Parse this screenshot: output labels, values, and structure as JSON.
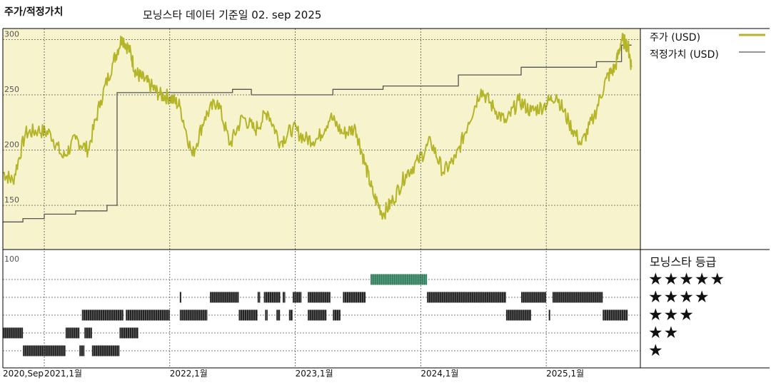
{
  "header": {
    "left_title": "주가/적정가치",
    "center_title": "모닝스타 데이터 기준일 02. sep 2025"
  },
  "legend": {
    "price_label": "주가 (USD)",
    "fair_label": "적정가치 (USD)",
    "price_color": "#b5b52a",
    "fair_color": "#555555"
  },
  "rating_panel": {
    "title": "모닝스타 등급",
    "stars": [
      "★★★★★",
      "★★★★",
      "★★★",
      "★★",
      "★"
    ]
  },
  "colors": {
    "plot_bg": "#f7f3cc",
    "rating_bar": "#222222",
    "five_star_bar": "#2e7d5b"
  },
  "chart_data": [
    {
      "type": "line",
      "title": "",
      "ylim": [
        110,
        310
      ],
      "yticks": [
        150,
        200,
        250,
        300
      ],
      "xlim": [
        2020.67,
        2025.75
      ],
      "xticks": [
        {
          "x": 2020.67,
          "label": "2020,Sep"
        },
        {
          "x": 2021.0,
          "label": "2021,1월"
        },
        {
          "x": 2022.0,
          "label": "2022,1월"
        },
        {
          "x": 2023.0,
          "label": "2023,1월"
        },
        {
          "x": 2024.0,
          "label": "2024,1월"
        },
        {
          "x": 2025.0,
          "label": "2025,1월"
        }
      ],
      "grid": true,
      "legend_position": "right",
      "series": [
        {
          "name": "주가 (USD)",
          "x": [
            2020.67,
            2020.75,
            2020.85,
            2020.95,
            2021.05,
            2021.15,
            2021.25,
            2021.35,
            2021.45,
            2021.55,
            2021.62,
            2021.68,
            2021.73,
            2021.78,
            2021.85,
            2021.92,
            2022.0,
            2022.08,
            2022.18,
            2022.28,
            2022.38,
            2022.48,
            2022.58,
            2022.68,
            2022.78,
            2022.88,
            2022.98,
            2023.08,
            2023.18,
            2023.28,
            2023.38,
            2023.48,
            2023.55,
            2023.62,
            2023.7,
            2023.78,
            2023.88,
            2023.98,
            2024.08,
            2024.18,
            2024.28,
            2024.38,
            2024.48,
            2024.58,
            2024.68,
            2024.78,
            2024.88,
            2024.98,
            2025.08,
            2025.18,
            2025.28,
            2025.38,
            2025.48,
            2025.55,
            2025.6,
            2025.65,
            2025.68
          ],
          "y": [
            180,
            172,
            215,
            218,
            215,
            193,
            210,
            200,
            245,
            280,
            302,
            290,
            270,
            265,
            258,
            250,
            248,
            240,
            195,
            230,
            245,
            205,
            230,
            218,
            235,
            207,
            220,
            210,
            210,
            230,
            215,
            220,
            190,
            160,
            142,
            155,
            178,
            190,
            208,
            180,
            193,
            225,
            255,
            238,
            225,
            245,
            235,
            240,
            250,
            225,
            205,
            230,
            265,
            275,
            300,
            295,
            275
          ],
          "color": "#b5b52a"
        },
        {
          "name": "적정가치 (USD)",
          "x": [
            2020.67,
            2020.83,
            2020.83,
            2021.0,
            2021.0,
            2021.25,
            2021.25,
            2021.5,
            2021.5,
            2021.58,
            2021.58,
            2022.0,
            2022.0,
            2022.5,
            2022.5,
            2022.65,
            2022.65,
            2023.0,
            2023.0,
            2023.3,
            2023.3,
            2023.7,
            2023.7,
            2024.3,
            2024.3,
            2024.8,
            2024.8,
            2025.4,
            2025.4,
            2025.6,
            2025.6,
            2025.68
          ],
          "y": [
            135,
            135,
            138,
            138,
            142,
            142,
            145,
            145,
            150,
            150,
            252,
            252,
            252,
            252,
            255,
            255,
            250,
            250,
            250,
            250,
            255,
            255,
            258,
            258,
            268,
            268,
            275,
            275,
            280,
            280,
            295,
            295
          ],
          "color": "#555555"
        }
      ]
    },
    {
      "type": "heatmap",
      "title": "모닝스타 등급",
      "ylabel": "",
      "y_tick": "100",
      "x_range": [
        2020.67,
        2025.75
      ],
      "series": [
        {
          "name": "★★★★★",
          "segments": [
            [
              2023.6,
              2024.05
            ]
          ]
        },
        {
          "name": "★★★★",
          "segments": [
            [
              2022.08,
              2022.09
            ],
            [
              2022.32,
              2022.55
            ],
            [
              2022.7,
              2022.72
            ],
            [
              2022.75,
              2022.88
            ],
            [
              2022.9,
              2022.92
            ],
            [
              2022.98,
              2023.05
            ],
            [
              2023.1,
              2023.28
            ],
            [
              2023.38,
              2023.56
            ],
            [
              2024.05,
              2024.68
            ],
            [
              2024.8,
              2025.0
            ],
            [
              2025.05,
              2025.45
            ]
          ]
        },
        {
          "name": "★★★",
          "segments": [
            [
              2021.3,
              2021.63
            ],
            [
              2021.65,
              2022.0
            ],
            [
              2022.08,
              2022.3
            ],
            [
              2022.55,
              2022.7
            ],
            [
              2022.76,
              2022.78
            ],
            [
              2022.85,
              2022.88
            ],
            [
              2022.95,
              2022.98
            ],
            [
              2023.1,
              2023.25
            ],
            [
              2023.3,
              2023.36
            ],
            [
              2024.68,
              2024.88
            ],
            [
              2025.02,
              2025.03
            ],
            [
              2025.45,
              2025.65
            ]
          ]
        },
        {
          "name": "★★",
          "segments": [
            [
              2020.67,
              2020.83
            ],
            [
              2021.17,
              2021.28
            ],
            [
              2021.32,
              2021.38
            ],
            [
              2021.6,
              2021.75
            ]
          ]
        },
        {
          "name": "★",
          "segments": [
            [
              2020.83,
              2021.17
            ],
            [
              2021.28,
              2021.32
            ],
            [
              2021.38,
              2021.6
            ]
          ]
        }
      ]
    }
  ]
}
